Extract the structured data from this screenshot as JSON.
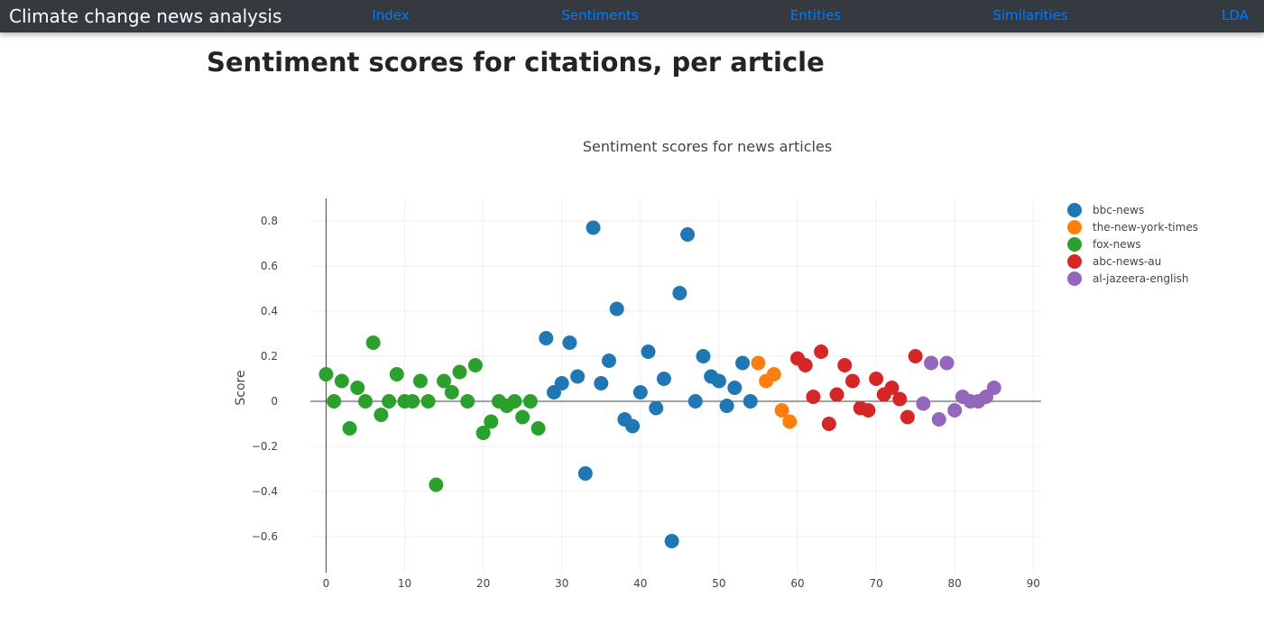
{
  "navbar": {
    "brand": "Climate change news analysis",
    "links": [
      "Index",
      "Sentiments",
      "Entities",
      "Similarities",
      "LDA"
    ]
  },
  "page": {
    "title": "Sentiment scores for citations, per article"
  },
  "chart_data": {
    "type": "scatter",
    "title": "Sentiment scores for news articles",
    "xlabel": "",
    "ylabel": "Score",
    "xlim": [
      -2,
      91
    ],
    "ylim": [
      -0.76,
      0.9
    ],
    "xticks": [
      0,
      10,
      20,
      30,
      40,
      50,
      60,
      70,
      80,
      90
    ],
    "yticks": [
      -0.6,
      -0.4,
      -0.2,
      0,
      0.2,
      0.4,
      0.6,
      0.8
    ],
    "grid": true,
    "legend_position": "top-right",
    "series": [
      {
        "name": "bbc-news",
        "color": "#1f77b4",
        "x": [
          28,
          29,
          30,
          31,
          32,
          33,
          34,
          35,
          36,
          37,
          38,
          39,
          40,
          41,
          42,
          43,
          44,
          45,
          46,
          47,
          48,
          49,
          50,
          51,
          52,
          53,
          54
        ],
        "y": [
          0.28,
          0.04,
          0.08,
          0.26,
          0.11,
          -0.32,
          0.77,
          0.08,
          0.18,
          0.41,
          -0.08,
          -0.11,
          0.04,
          0.22,
          -0.03,
          0.1,
          -0.62,
          0.48,
          0.74,
          0.0,
          0.2,
          0.11,
          0.09,
          -0.02,
          0.06,
          0.17,
          0.0
        ]
      },
      {
        "name": "the-new-york-times",
        "color": "#ff7f0e",
        "x": [
          55,
          56,
          57,
          58,
          59
        ],
        "y": [
          0.17,
          0.09,
          0.12,
          -0.04,
          -0.09
        ]
      },
      {
        "name": "fox-news",
        "color": "#2ca02c",
        "x": [
          0,
          1,
          2,
          3,
          4,
          5,
          6,
          7,
          8,
          9,
          10,
          11,
          12,
          13,
          14,
          15,
          16,
          17,
          18,
          19,
          20,
          21,
          22,
          23,
          24,
          25,
          26,
          27
        ],
        "y": [
          0.12,
          0.0,
          0.09,
          -0.12,
          0.06,
          0.0,
          0.26,
          -0.06,
          0.0,
          0.12,
          0.0,
          0.0,
          0.09,
          0.0,
          -0.37,
          0.09,
          0.04,
          0.13,
          0.0,
          0.16,
          -0.14,
          -0.09,
          0.0,
          -0.02,
          0.0,
          -0.07,
          0.0,
          -0.12
        ]
      },
      {
        "name": "abc-news-au",
        "color": "#d62728",
        "x": [
          60,
          61,
          62,
          63,
          64,
          65,
          66,
          67,
          68,
          69,
          70,
          71,
          72,
          73,
          74,
          75
        ],
        "y": [
          0.19,
          0.16,
          0.02,
          0.22,
          -0.1,
          0.03,
          0.16,
          0.09,
          -0.03,
          -0.04,
          0.1,
          0.03,
          0.06,
          0.01,
          -0.07,
          0.2
        ]
      },
      {
        "name": "al-jazeera-english",
        "color": "#9467bd",
        "x": [
          76,
          77,
          78,
          79,
          80,
          81,
          82,
          83,
          84,
          85
        ],
        "y": [
          -0.01,
          0.17,
          -0.08,
          0.17,
          -0.04,
          0.02,
          0.0,
          0.0,
          0.02,
          0.06
        ]
      }
    ]
  }
}
